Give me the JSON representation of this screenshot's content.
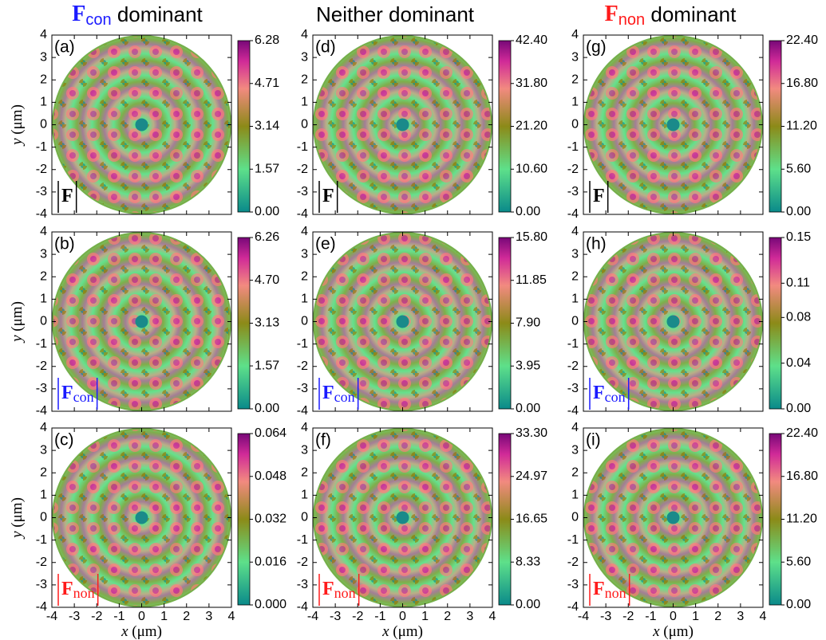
{
  "column_titles": [
    {
      "symbol": "F",
      "subscript": "con",
      "text": "dominant",
      "color": "#1a1aff"
    },
    {
      "text": "Neither dominant"
    },
    {
      "symbol": "F",
      "subscript": "non",
      "text": "dominant",
      "color": "#ff1a1a"
    }
  ],
  "chart_data": [
    {
      "type": "heatmap",
      "panel": "(a)",
      "component": "F",
      "component_color": "#000000",
      "xlim": [
        -4,
        4
      ],
      "ylim": [
        -4,
        4
      ],
      "xticks": [
        -4,
        -3,
        -2,
        -1,
        0,
        1,
        2,
        3,
        4
      ],
      "yticks": [
        -4,
        -3,
        -2,
        -1,
        0,
        1,
        2,
        3,
        4
      ],
      "ylabel_var": "y",
      "ylabel_unit": "(μm)",
      "clim": [
        0,
        6.28
      ],
      "cticks": [
        {
          "value": 0,
          "label": "0.00"
        },
        1.57,
        3.14,
        4.71,
        6.28
      ]
    },
    {
      "type": "heatmap",
      "panel": "(b)",
      "component": "F",
      "component_sub": "con",
      "component_color": "#1a1aff",
      "xlim": [
        -4,
        4
      ],
      "ylim": [
        -4,
        4
      ],
      "xticks": [
        -4,
        -3,
        -2,
        -1,
        0,
        1,
        2,
        3,
        4
      ],
      "yticks": [
        -4,
        -3,
        -2,
        -1,
        0,
        1,
        2,
        3,
        4
      ],
      "ylabel_var": "y",
      "ylabel_unit": "(μm)",
      "clim": [
        0,
        6.26
      ],
      "cticks": [
        {
          "value": 0,
          "label": "0.00"
        },
        1.57,
        3.13,
        {
          "value": 4.7,
          "label": "4.70"
        },
        6.26
      ]
    },
    {
      "type": "heatmap",
      "panel": "(c)",
      "component": "F",
      "component_sub": "non",
      "component_color": "#ff1a1a",
      "xlim": [
        -4,
        4
      ],
      "ylim": [
        -4,
        4
      ],
      "xticks": [
        -4,
        -3,
        -2,
        -1,
        0,
        1,
        2,
        3,
        4
      ],
      "yticks": [
        -4,
        -3,
        -2,
        -1,
        0,
        1,
        2,
        3,
        4
      ],
      "ylabel_var": "y",
      "ylabel_unit": "(μm)",
      "xlabel_var": "x",
      "xlabel_unit": "(μm)",
      "clim": [
        0,
        0.064
      ],
      "cticks": [
        {
          "value": 0,
          "label": "0.000"
        },
        0.016,
        0.032,
        0.048,
        0.064
      ]
    },
    {
      "type": "heatmap",
      "panel": "(d)",
      "component": "F",
      "component_color": "#000000",
      "xlim": [
        -4,
        4
      ],
      "ylim": [
        -4,
        4
      ],
      "xticks": [
        -4,
        -3,
        -2,
        -1,
        0,
        1,
        2,
        3,
        4
      ],
      "yticks": [
        -4,
        -3,
        -2,
        -1,
        0,
        1,
        2,
        3,
        4
      ],
      "clim": [
        0,
        42.4
      ],
      "cticks": [
        {
          "value": 0,
          "label": "0.00"
        },
        {
          "value": 10.6,
          "label": "10.60"
        },
        {
          "value": 21.2,
          "label": "21.20"
        },
        {
          "value": 31.8,
          "label": "31.80"
        },
        {
          "value": 42.4,
          "label": "42.40"
        }
      ]
    },
    {
      "type": "heatmap",
      "panel": "(e)",
      "component": "F",
      "component_sub": "con",
      "component_color": "#1a1aff",
      "xlim": [
        -4,
        4
      ],
      "ylim": [
        -4,
        4
      ],
      "xticks": [
        -4,
        -3,
        -2,
        -1,
        0,
        1,
        2,
        3,
        4
      ],
      "yticks": [
        -4,
        -3,
        -2,
        -1,
        0,
        1,
        2,
        3,
        4
      ],
      "clim": [
        0,
        15.8
      ],
      "cticks": [
        {
          "value": 0,
          "label": "0.00"
        },
        3.95,
        {
          "value": 7.9,
          "label": "7.90"
        },
        11.85,
        {
          "value": 15.8,
          "label": "15.80"
        }
      ]
    },
    {
      "type": "heatmap",
      "panel": "(f)",
      "component": "F",
      "component_sub": "non",
      "component_color": "#ff1a1a",
      "xlim": [
        -4,
        4
      ],
      "ylim": [
        -4,
        4
      ],
      "xticks": [
        -4,
        -3,
        -2,
        -1,
        0,
        1,
        2,
        3,
        4
      ],
      "yticks": [
        -4,
        -3,
        -2,
        -1,
        0,
        1,
        2,
        3,
        4
      ],
      "xlabel_var": "x",
      "xlabel_unit": "(μm)",
      "clim": [
        0,
        33.3
      ],
      "cticks": [
        {
          "value": 0,
          "label": "0.00"
        },
        8.33,
        16.65,
        24.97,
        {
          "value": 33.3,
          "label": "33.30"
        }
      ]
    },
    {
      "type": "heatmap",
      "panel": "(g)",
      "component": "F",
      "component_color": "#000000",
      "xlim": [
        -4,
        4
      ],
      "ylim": [
        -4,
        4
      ],
      "xticks": [
        -4,
        -3,
        -2,
        -1,
        0,
        1,
        2,
        3,
        4
      ],
      "yticks": [
        -4,
        -3,
        -2,
        -1,
        0,
        1,
        2,
        3,
        4
      ],
      "clim": [
        0,
        22.4
      ],
      "cticks": [
        {
          "value": 0,
          "label": "0.00"
        },
        {
          "value": 5.6,
          "label": "5.60"
        },
        {
          "value": 11.2,
          "label": "11.20"
        },
        {
          "value": 16.8,
          "label": "16.80"
        },
        {
          "value": 22.4,
          "label": "22.40"
        }
      ]
    },
    {
      "type": "heatmap",
      "panel": "(h)",
      "component": "F",
      "component_sub": "con",
      "component_color": "#1a1aff",
      "xlim": [
        -4,
        4
      ],
      "ylim": [
        -4,
        4
      ],
      "xticks": [
        -4,
        -3,
        -2,
        -1,
        0,
        1,
        2,
        3,
        4
      ],
      "yticks": [
        -4,
        -3,
        -2,
        -1,
        0,
        1,
        2,
        3,
        4
      ],
      "clim": [
        0,
        0.15
      ],
      "cticks": [
        {
          "value": 0,
          "label": "0.00"
        },
        0.04,
        0.08,
        0.11,
        0.15
      ]
    },
    {
      "type": "heatmap",
      "panel": "(i)",
      "component": "F",
      "component_sub": "non",
      "component_color": "#ff1a1a",
      "xlim": [
        -4,
        4
      ],
      "ylim": [
        -4,
        4
      ],
      "xticks": [
        -4,
        -3,
        -2,
        -1,
        0,
        1,
        2,
        3,
        4
      ],
      "yticks": [
        -4,
        -3,
        -2,
        -1,
        0,
        1,
        2,
        3,
        4
      ],
      "xlabel_var": "x",
      "xlabel_unit": "(μm)",
      "clim": [
        0,
        22.4
      ],
      "cticks": [
        {
          "value": 0,
          "label": "0.00"
        },
        {
          "value": 5.6,
          "label": "5.60"
        },
        {
          "value": 11.2,
          "label": "11.20"
        },
        {
          "value": 16.8,
          "label": "16.80"
        },
        {
          "value": 22.4,
          "label": "22.40"
        }
      ]
    }
  ]
}
